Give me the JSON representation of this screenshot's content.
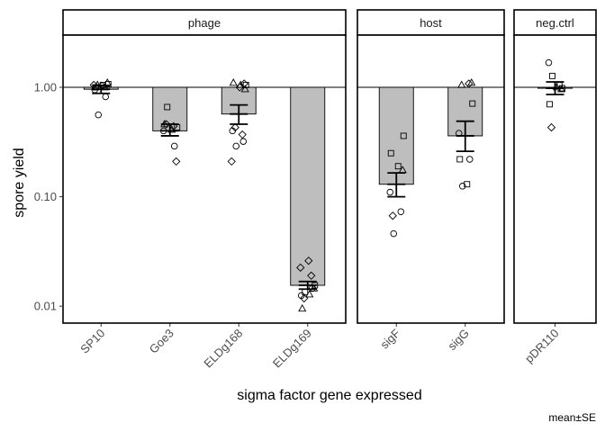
{
  "chart_data": {
    "type": "bar",
    "ylabel": "spore yield",
    "xlabel": "sigma factor gene expressed",
    "caption": "mean±SE",
    "yscale": "log10",
    "ylim": [
      0.007,
      3.0
    ],
    "yticks": [
      0.01,
      0.1,
      1.0
    ],
    "ytick_labels": [
      "0.01",
      "0.10",
      "1.00"
    ],
    "reference_line": 1.0,
    "bar_fill": "#bebebe",
    "panels": [
      {
        "name": "phage",
        "categories": [
          "SP10",
          "Goe3",
          "ELDg168",
          "ELDg169"
        ],
        "bars": [
          {
            "category": "SP10",
            "mean": 0.96,
            "se_low": 0.88,
            "se_high": 1.04,
            "points": [
              {
                "shape": "circle",
                "y": 0.95
              },
              {
                "shape": "circle",
                "y": 0.82
              },
              {
                "shape": "circle",
                "y": 0.56
              },
              {
                "shape": "square",
                "y": 1.07
              },
              {
                "shape": "square",
                "y": 1.0
              },
              {
                "shape": "square",
                "y": 1.05
              },
              {
                "shape": "triangle",
                "y": 1.1
              },
              {
                "shape": "triangle",
                "y": 1.05
              },
              {
                "shape": "triangle",
                "y": 1.0
              },
              {
                "shape": "diamond",
                "y": 1.05
              },
              {
                "shape": "diamond",
                "y": 1.03
              }
            ]
          },
          {
            "category": "Goe3",
            "mean": 0.4,
            "se_low": 0.36,
            "se_high": 0.46,
            "points": [
              {
                "shape": "circle",
                "y": 0.4
              },
              {
                "shape": "circle",
                "y": 0.29
              },
              {
                "shape": "square",
                "y": 0.66
              },
              {
                "shape": "square",
                "y": 0.43
              },
              {
                "shape": "triangle",
                "y": 0.46
              },
              {
                "shape": "triangle",
                "y": 0.41
              },
              {
                "shape": "diamond",
                "y": 0.21
              },
              {
                "shape": "diamond",
                "y": 0.46
              },
              {
                "shape": "diamond",
                "y": 0.44
              }
            ]
          },
          {
            "category": "ELDg168",
            "mean": 0.57,
            "se_low": 0.46,
            "se_high": 0.69,
            "points": [
              {
                "shape": "circle",
                "y": 0.4
              },
              {
                "shape": "circle",
                "y": 0.32
              },
              {
                "shape": "circle",
                "y": 0.29
              },
              {
                "shape": "square",
                "y": 1.05
              },
              {
                "shape": "triangle",
                "y": 1.1
              },
              {
                "shape": "triangle",
                "y": 1.05
              },
              {
                "shape": "triangle",
                "y": 0.96
              },
              {
                "shape": "diamond",
                "y": 0.43
              },
              {
                "shape": "diamond",
                "y": 0.37
              },
              {
                "shape": "diamond",
                "y": 0.21
              },
              {
                "shape": "diamond",
                "y": 1.0
              },
              {
                "shape": "diamond",
                "y": 1.08
              }
            ]
          },
          {
            "category": "ELDg169",
            "mean": 0.0155,
            "se_low": 0.0143,
            "se_high": 0.0168,
            "points": [
              {
                "shape": "circle",
                "y": 0.0125
              },
              {
                "shape": "circle",
                "y": 0.0145
              },
              {
                "shape": "square",
                "y": 0.0135
              },
              {
                "shape": "square",
                "y": 0.0155
              },
              {
                "shape": "triangle",
                "y": 0.0095
              },
              {
                "shape": "triangle",
                "y": 0.0128
              },
              {
                "shape": "triangle",
                "y": 0.0145
              },
              {
                "shape": "diamond",
                "y": 0.0118
              },
              {
                "shape": "diamond",
                "y": 0.019
              },
              {
                "shape": "diamond",
                "y": 0.0225
              },
              {
                "shape": "diamond",
                "y": 0.026
              }
            ]
          }
        ]
      },
      {
        "name": "host",
        "categories": [
          "sigF",
          "sigG"
        ],
        "bars": [
          {
            "category": "sigF",
            "mean": 0.13,
            "se_low": 0.1,
            "se_high": 0.165,
            "points": [
              {
                "shape": "circle",
                "y": 0.11
              },
              {
                "shape": "circle",
                "y": 0.073
              },
              {
                "shape": "circle",
                "y": 0.046
              },
              {
                "shape": "square",
                "y": 0.36
              },
              {
                "shape": "square",
                "y": 0.25
              },
              {
                "shape": "square",
                "y": 0.19
              },
              {
                "shape": "triangle",
                "y": 0.175
              },
              {
                "shape": "diamond",
                "y": 0.067
              }
            ]
          },
          {
            "category": "sigG",
            "mean": 0.36,
            "se_low": 0.26,
            "se_high": 0.49,
            "points": [
              {
                "shape": "circle",
                "y": 0.38
              },
              {
                "shape": "circle",
                "y": 0.22
              },
              {
                "shape": "circle",
                "y": 0.125
              },
              {
                "shape": "square",
                "y": 0.71
              },
              {
                "shape": "square",
                "y": 0.22
              },
              {
                "shape": "square",
                "y": 0.13
              },
              {
                "shape": "triangle",
                "y": 1.1
              },
              {
                "shape": "triangle",
                "y": 1.05
              },
              {
                "shape": "diamond",
                "y": 1.08
              }
            ]
          }
        ]
      },
      {
        "name": "neg.ctrl",
        "categories": [
          "pDR110"
        ],
        "bars": [
          {
            "category": "pDR110",
            "mean": 0.98,
            "se_low": 0.86,
            "se_high": 1.12,
            "points": [
              {
                "shape": "circle",
                "y": 1.68
              },
              {
                "shape": "circle",
                "y": 1.05
              },
              {
                "shape": "square",
                "y": 1.27
              },
              {
                "shape": "square",
                "y": 0.98
              },
              {
                "shape": "square",
                "y": 0.7
              },
              {
                "shape": "triangle",
                "y": 1.0
              },
              {
                "shape": "triangle",
                "y": 0.96
              },
              {
                "shape": "diamond",
                "y": 0.43
              }
            ]
          }
        ]
      }
    ]
  }
}
